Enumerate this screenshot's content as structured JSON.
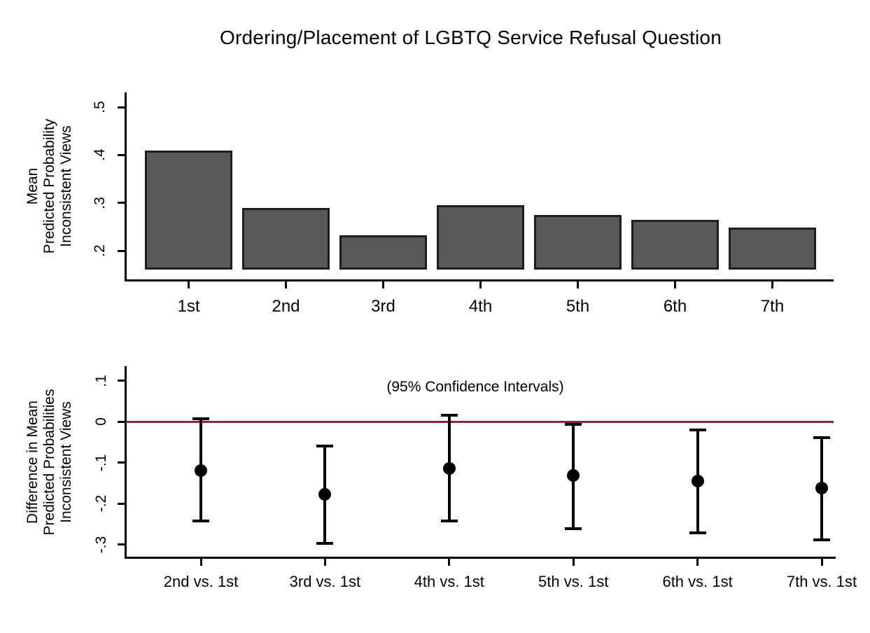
{
  "figure": {
    "title": "Ordering/Placement of LGBTQ Service Refusal Question"
  },
  "colors": {
    "bar_fill": "#595959",
    "bar_border": "#1e1e1e",
    "zero_line_red": "#A0193F",
    "axis_black": "#000000"
  },
  "chart_data": [
    {
      "type": "bar",
      "panel": "top",
      "categories": [
        "1st",
        "2nd",
        "3rd",
        "4th",
        "5th",
        "6th",
        "7th"
      ],
      "values": [
        0.41,
        0.29,
        0.232,
        0.295,
        0.275,
        0.264,
        0.249
      ],
      "bar_base": 0.16,
      "ylabel_lines": [
        "Mean",
        "Predicted Probability",
        "Inconsistent Views"
      ],
      "yticks": [
        0.2,
        0.3,
        0.4,
        0.5
      ],
      "ytick_labels": [
        ".2",
        ".3",
        ".4",
        ".5"
      ],
      "ylim": [
        0.16,
        0.53
      ],
      "grid": false,
      "legend": "none"
    },
    {
      "type": "scatter",
      "subtype": "point-estimates-with-ci",
      "panel": "bottom",
      "annotation": "(95% Confidence Intervals)",
      "categories": [
        "2nd vs. 1st",
        "3rd vs. 1st",
        "4th vs. 1st",
        "5th vs. 1st",
        "6th vs. 1st",
        "7th vs. 1st"
      ],
      "estimates": [
        -0.12,
        -0.178,
        -0.115,
        -0.132,
        -0.146,
        -0.163
      ],
      "ci_high": [
        0.006,
        -0.059,
        0.016,
        -0.006,
        -0.021,
        -0.04
      ],
      "ci_low": [
        -0.243,
        -0.298,
        -0.243,
        -0.262,
        -0.271,
        -0.289
      ],
      "zero_reference_line": 0,
      "ylabel_lines": [
        "Difference in Mean",
        "Predicted Probabilities",
        "Inconsistent Views"
      ],
      "yticks": [
        0.1,
        0,
        -0.1,
        -0.2,
        -0.3
      ],
      "ytick_labels": [
        ".1",
        "0",
        "-.1",
        "-.2",
        "-.3"
      ],
      "ylim": [
        -0.333,
        0.135
      ],
      "grid": false,
      "legend": "none"
    }
  ]
}
